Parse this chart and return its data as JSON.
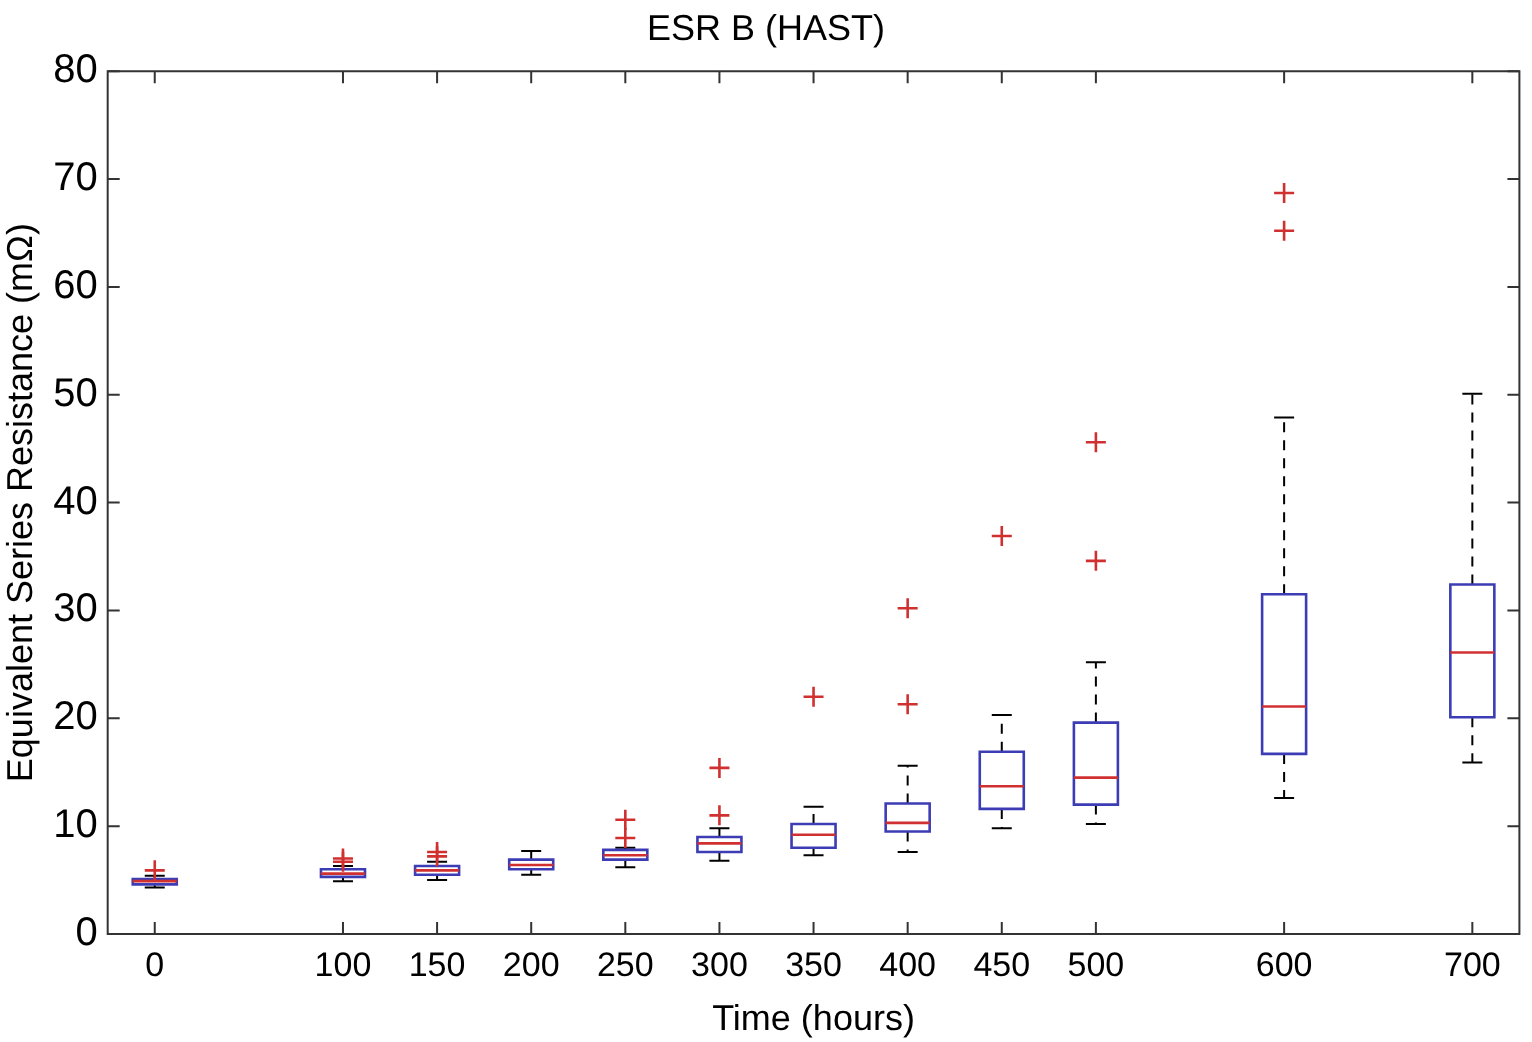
{
  "chart_data": {
    "type": "box",
    "title": "ESR B (HAST)",
    "xlabel": "Time (hours)",
    "ylabel": "Equivalent Series Resistance (mΩ)",
    "categories": [
      "0",
      null,
      "100",
      "150",
      "200",
      "250",
      "300",
      "350",
      "400",
      "450",
      "500",
      null,
      "600",
      null,
      "700"
    ],
    "color": "#3c3cb4",
    "boxes": [
      {
        "low": 4.3,
        "q1": 4.6,
        "median": 4.9,
        "q3": 5.1,
        "high": 5.4,
        "outliers": [
          5.9
        ]
      },
      null,
      {
        "low": 4.9,
        "q1": 5.3,
        "median": 5.6,
        "q3": 6.0,
        "high": 6.3,
        "outliers": [
          6.7,
          7.0
        ]
      },
      {
        "low": 5.0,
        "q1": 5.5,
        "median": 5.9,
        "q3": 6.3,
        "high": 6.7,
        "outliers": [
          7.2,
          7.6
        ]
      },
      {
        "low": 5.5,
        "q1": 6.0,
        "median": 6.4,
        "q3": 6.9,
        "high": 7.7
      },
      {
        "low": 6.2,
        "q1": 6.9,
        "median": 7.3,
        "q3": 7.8,
        "high": 8.0,
        "outliers": [
          8.9,
          10.6
        ]
      },
      {
        "low": 6.8,
        "q1": 7.6,
        "median": 8.4,
        "q3": 9.0,
        "high": 9.8,
        "outliers": [
          11.0,
          15.4
        ]
      },
      {
        "low": 7.3,
        "q1": 8.0,
        "median": 9.2,
        "q3": 10.2,
        "high": 11.8,
        "outliers": [
          22.0
        ]
      },
      {
        "low": 7.6,
        "q1": 9.5,
        "median": 10.3,
        "q3": 12.1,
        "high": 15.6,
        "outliers": [
          21.3,
          30.2
        ]
      },
      {
        "low": 9.8,
        "q1": 11.6,
        "median": 13.7,
        "q3": 16.9,
        "high": 20.3,
        "outliers": [
          36.9
        ]
      },
      {
        "low": 10.2,
        "q1": 12.0,
        "median": 14.5,
        "q3": 19.6,
        "high": 25.2,
        "outliers": [
          34.6,
          45.6
        ]
      },
      null,
      {
        "low": 12.6,
        "q1": 16.7,
        "median": 21.1,
        "q3": 31.5,
        "high": 47.9,
        "outliers": [
          65.2,
          68.7
        ]
      },
      null,
      {
        "low": 15.9,
        "q1": 20.1,
        "median": 26.1,
        "q3": 32.4,
        "high": 50.1
      }
    ],
    "ylim": [
      0,
      80
    ],
    "yticks": [
      0,
      10,
      20,
      30,
      40,
      50,
      60,
      70,
      80
    ],
    "grid": false,
    "legend": false,
    "marker": "cross"
  }
}
